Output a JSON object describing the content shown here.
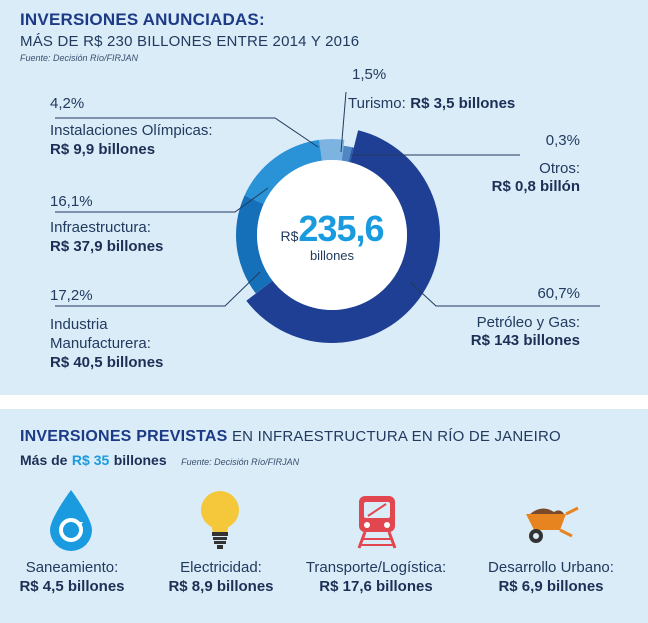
{
  "header": {
    "title": "INVERSIONES ANUNCIADAS:",
    "subtitle": "MÁS DE R$ 230 BILLONES ENTRE 2014 Y 2016",
    "source": "Fuente: Decisión Río/FIRJAN"
  },
  "chart_data": {
    "type": "pie",
    "donut": true,
    "center": {
      "currency": "R$",
      "value": "235,6",
      "unit": "billones"
    },
    "slices": [
      {
        "label": "Petróleo y Gas:",
        "amount": "R$ 143 billones",
        "value": 143,
        "percent": "60,7%",
        "color": "#1f3f94"
      },
      {
        "label": "Industria Manufacturera:",
        "label_line1": "Industria",
        "label_line2": "Manufacturera:",
        "amount": "R$ 40,5 billones",
        "value": 40.5,
        "percent": "17,2%",
        "color": "#1670b9"
      },
      {
        "label": "Infraestructura:",
        "amount": "R$ 37,9 billones",
        "value": 37.9,
        "percent": "16,1%",
        "color": "#2a92d6"
      },
      {
        "label": "Instalaciones Olímpicas:",
        "amount": "R$ 9,9 billones",
        "value": 9.9,
        "percent": "4,2%",
        "color": "#7db3e1"
      },
      {
        "label": "Turismo:",
        "amount": "R$ 3,5 billones",
        "value": 3.5,
        "percent": "1,5%",
        "color": "#4f86c6"
      },
      {
        "label": "Otros:",
        "amount": "R$ 0,8 billón",
        "value": 0.8,
        "percent": "0,3%",
        "color": "#2b5aa8"
      }
    ]
  },
  "section2": {
    "title_bold": "INVERSIONES PREVISTAS",
    "title_rest": "EN INFRAESTRUCTURA EN RÍO DE JANEIRO",
    "sub_prefix": "Más de",
    "sub_value": "R$ 35",
    "sub_suffix": "billones",
    "source": "Fuente: Decisión Río/FIRJAN",
    "items": [
      {
        "label": "Saneamiento:",
        "amount": "R$ 4,5 billones",
        "icon": "water-drop-icon"
      },
      {
        "label": "Electricidad:",
        "amount": "R$ 8,9 billones",
        "icon": "light-bulb-icon"
      },
      {
        "label": "Transporte/Logística:",
        "amount": "R$ 17,6 billones",
        "icon": "train-icon"
      },
      {
        "label": "Desarrollo Urbano:",
        "amount": "R$ 6,9 billones",
        "icon": "wheelbarrow-icon"
      }
    ]
  },
  "colors": {
    "accent": "#1a9be0",
    "title": "#1d3a87",
    "panel": "#d9ecf8",
    "icon_red": "#e2474f",
    "bulb": "#f5c73a",
    "brown": "#7a4a2a",
    "orange": "#e8841f"
  }
}
